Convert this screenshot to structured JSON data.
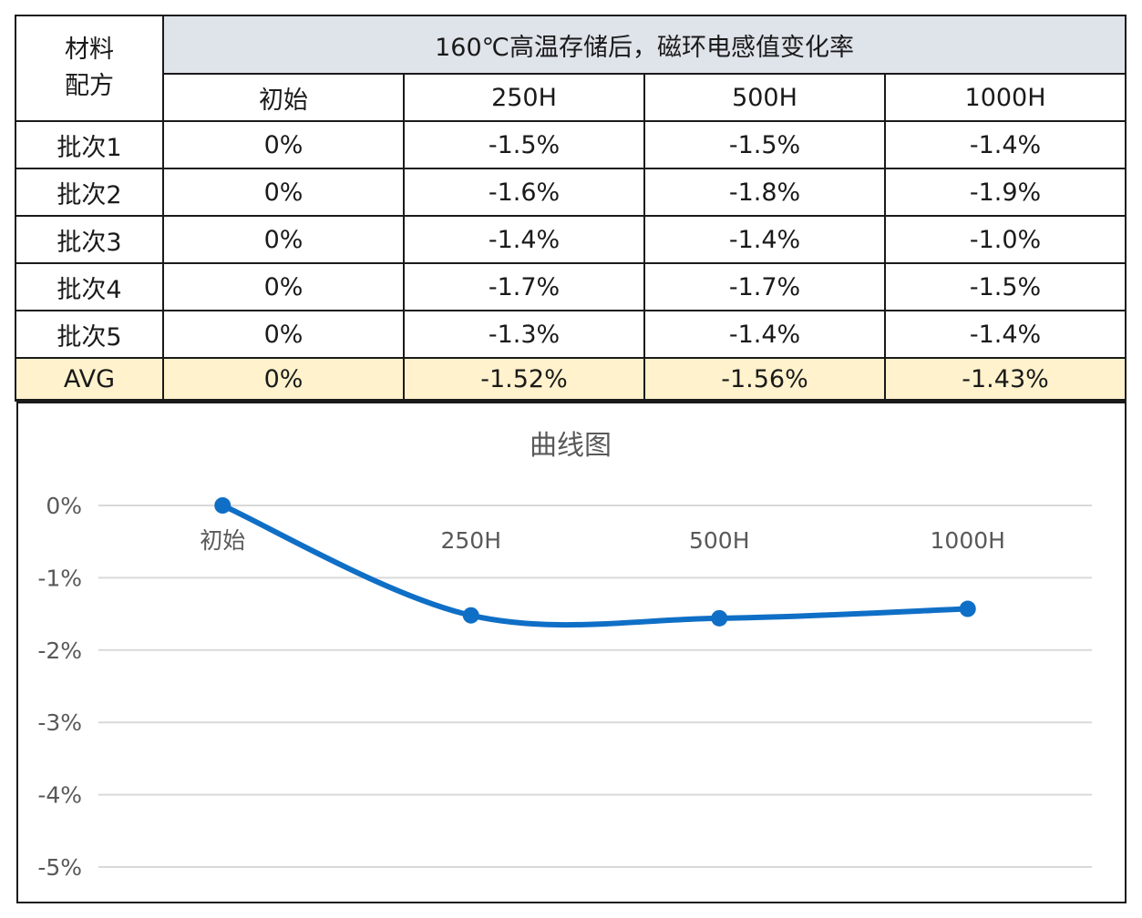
{
  "table": {
    "corner_line1": "材料",
    "corner_line2": "配方",
    "banner": "160℃高温存储后，磁环电感值变化率",
    "columns": [
      "初始",
      "250H",
      "500H",
      "1000H"
    ],
    "rows": [
      {
        "label": "批次1",
        "values": [
          "0%",
          "-1.5%",
          "-1.5%",
          "-1.4%"
        ]
      },
      {
        "label": "批次2",
        "values": [
          "0%",
          "-1.6%",
          "-1.8%",
          "-1.9%"
        ]
      },
      {
        "label": "批次3",
        "values": [
          "0%",
          "-1.4%",
          "-1.4%",
          "-1.0%"
        ]
      },
      {
        "label": "批次4",
        "values": [
          "0%",
          "-1.7%",
          "-1.7%",
          "-1.5%"
        ]
      },
      {
        "label": "批次5",
        "values": [
          "0%",
          "-1.3%",
          "-1.4%",
          "-1.4%"
        ]
      }
    ],
    "avg": {
      "label": "AVG",
      "values": [
        "0%",
        "-1.52%",
        "-1.56%",
        "-1.43%"
      ]
    }
  },
  "chart_data": {
    "type": "line",
    "title": "曲线图",
    "categories": [
      "初始",
      "250H",
      "500H",
      "1000H"
    ],
    "series": [
      {
        "values": [
          0,
          -1.52,
          -1.56,
          -1.43
        ]
      }
    ],
    "ylim": [
      -5,
      0
    ],
    "y_ticks": [
      0,
      -1,
      -2,
      -3,
      -4,
      -5
    ],
    "y_tick_labels": [
      "0%",
      "-1%",
      "-2%",
      "-3%",
      "-4%",
      "-5%"
    ],
    "smooth": true,
    "grid": true,
    "legend": "none",
    "line_color": "#0f6fc6",
    "grid_color": "#d9d9d9",
    "text_color": "#595959"
  }
}
